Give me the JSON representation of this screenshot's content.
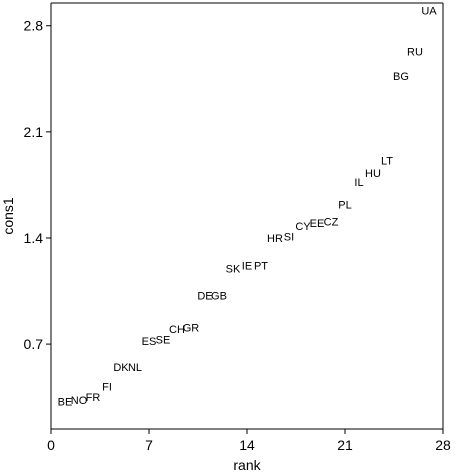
{
  "chart_data": {
    "type": "scatter",
    "title": "",
    "xlabel": "rank",
    "ylabel": "cons1",
    "xlim": [
      0,
      28
    ],
    "ylim": [
      0.14,
      2.95
    ],
    "xticks": [
      {
        "value": 0,
        "label": "0"
      },
      {
        "value": 7,
        "label": "7"
      },
      {
        "value": 14,
        "label": "14"
      },
      {
        "value": 21,
        "label": "21"
      },
      {
        "value": 28,
        "label": "28"
      }
    ],
    "yticks": [
      {
        "value": 0.7,
        "label": "0.7"
      },
      {
        "value": 1.4,
        "label": "1.4"
      },
      {
        "value": 2.1,
        "label": "2.1"
      },
      {
        "value": 2.8,
        "label": "2.8"
      }
    ],
    "grid": false,
    "points": [
      {
        "label": "BE",
        "x": 1,
        "y": 0.32
      },
      {
        "label": "NO",
        "x": 2,
        "y": 0.33
      },
      {
        "label": "FR",
        "x": 3,
        "y": 0.35
      },
      {
        "label": "FI",
        "x": 4,
        "y": 0.42
      },
      {
        "label": "DK",
        "x": 5,
        "y": 0.55
      },
      {
        "label": "NL",
        "x": 6,
        "y": 0.55
      },
      {
        "label": "ES",
        "x": 7,
        "y": 0.72
      },
      {
        "label": "SE",
        "x": 8,
        "y": 0.73
      },
      {
        "label": "CH",
        "x": 9,
        "y": 0.8
      },
      {
        "label": "GR",
        "x": 10,
        "y": 0.81
      },
      {
        "label": "DE",
        "x": 11,
        "y": 1.02
      },
      {
        "label": "GB",
        "x": 12,
        "y": 1.02
      },
      {
        "label": "SK",
        "x": 13,
        "y": 1.2
      },
      {
        "label": "IE",
        "x": 14,
        "y": 1.22
      },
      {
        "label": "PT",
        "x": 15,
        "y": 1.22
      },
      {
        "label": "HR",
        "x": 16,
        "y": 1.4
      },
      {
        "label": "SI",
        "x": 17,
        "y": 1.41
      },
      {
        "label": "CY",
        "x": 18,
        "y": 1.48
      },
      {
        "label": "EE",
        "x": 19,
        "y": 1.5
      },
      {
        "label": "CZ",
        "x": 20,
        "y": 1.51
      },
      {
        "label": "PL",
        "x": 21,
        "y": 1.62
      },
      {
        "label": "IL",
        "x": 22,
        "y": 1.77
      },
      {
        "label": "HU",
        "x": 23,
        "y": 1.83
      },
      {
        "label": "LT",
        "x": 24,
        "y": 1.91
      },
      {
        "label": "BG",
        "x": 25,
        "y": 2.47
      },
      {
        "label": "RU",
        "x": 26,
        "y": 2.63
      },
      {
        "label": "UA",
        "x": 27,
        "y": 2.9
      }
    ]
  }
}
